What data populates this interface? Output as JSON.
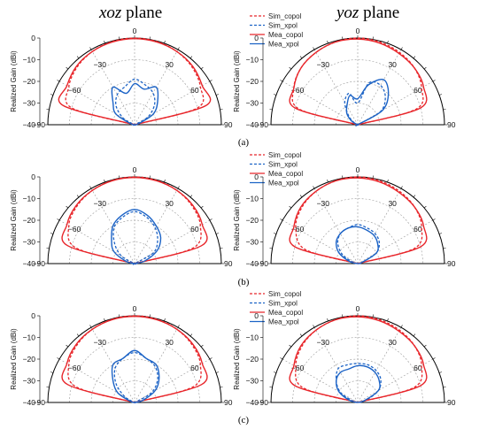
{
  "titles": {
    "xoz": {
      "italic": "xoz",
      "rest": " plane"
    },
    "yoz": {
      "italic": "yoz",
      "rest": " plane"
    }
  },
  "captions": [
    "(a)",
    "(b)",
    "(c)"
  ],
  "colors": {
    "copol": "#e8262b",
    "xpol": "#1c63c6"
  },
  "chart_data": {
    "type": "polar",
    "angle_unit": "deg",
    "angle_range": [
      -90,
      90
    ],
    "angle_ticks": [
      -90,
      -60,
      -30,
      0,
      30,
      60,
      90
    ],
    "angle_tick_labels": [
      "−90",
      "−60",
      "−30",
      "0",
      "30",
      "60",
      "90"
    ],
    "r_range": [
      -40,
      0
    ],
    "r_ticks": [
      0,
      -10,
      -20,
      -30,
      -40
    ],
    "r_tick_labels": [
      "0",
      "−10",
      "−20",
      "−30",
      "−40"
    ],
    "ylabel": "Realized Gain (dBi)",
    "grid": true,
    "legend": [
      {
        "label": "Sim_copol",
        "kind": "copol",
        "dash": true
      },
      {
        "label": "Sim_xpol",
        "kind": "xpol",
        "dash": true
      },
      {
        "label": "Mea_copol",
        "kind": "copol",
        "dash": false
      },
      {
        "label": "Mea_xpol",
        "kind": "xpol",
        "dash": false
      }
    ],
    "angles": [
      -90,
      -75,
      -60,
      -45,
      -30,
      -15,
      0,
      15,
      30,
      45,
      60,
      75,
      90
    ],
    "panels": [
      {
        "id": "a-xoz",
        "row": 0,
        "col": 0,
        "series": [
          {
            "name": "Sim_copol",
            "values": [
              -40,
              -10,
              -5,
              -2.5,
              -1,
              -0.3,
              0,
              -0.3,
              -1,
              -2.5,
              -5,
              -10,
              -40
            ]
          },
          {
            "name": "Sim_xpol",
            "values": [
              -40,
              -40,
              -34,
              -28,
              -24,
              -22,
              -19,
              -21,
              -23,
              -27,
              -33,
              -40,
              -40
            ]
          },
          {
            "name": "Mea_copol",
            "values": [
              -40,
              -6,
              -4,
              -2,
              -1,
              -0.5,
              -0.3,
              -0.5,
              -1,
              -2,
              -4,
              -6,
              -40
            ]
          },
          {
            "name": "Mea_xpol",
            "values": [
              -40,
              -38,
              -30,
              -26,
              -20,
              -25,
              -21,
              -23,
              -20,
              -25,
              -30,
              -38,
              -40
            ]
          }
        ]
      },
      {
        "id": "a-yoz",
        "row": 0,
        "col": 1,
        "series": [
          {
            "name": "Sim_copol",
            "values": [
              -40,
              -12,
              -6,
              -3,
              -1.5,
              -0.5,
              0,
              -0.5,
              -1.5,
              -3,
              -6,
              -12,
              -40
            ]
          },
          {
            "name": "Sim_xpol",
            "values": [
              -40,
              -40,
              -38,
              -34,
              -28,
              -25,
              -30,
              -20,
              -19,
              -22,
              -28,
              -40,
              -40
            ]
          },
          {
            "name": "Mea_copol",
            "values": [
              -40,
              -10,
              -6,
              -3,
              -1.5,
              -0.5,
              -0.5,
              -1,
              -2,
              -3,
              -5,
              -10,
              -40
            ]
          },
          {
            "name": "Mea_xpol",
            "values": [
              -40,
              -40,
              -37,
              -33,
              -30,
              -26,
              -28,
              -21,
              -16,
              -20,
              -27,
              -40,
              -40
            ]
          }
        ]
      },
      {
        "id": "b-xoz",
        "row": 1,
        "col": 0,
        "series": [
          {
            "name": "Sim_copol",
            "values": [
              -40,
              -12,
              -5,
              -2.5,
              -1,
              -0.3,
              0,
              -0.3,
              -1,
              -2.5,
              -5,
              -12,
              -40
            ]
          },
          {
            "name": "Sim_xpol",
            "values": [
              -40,
              -40,
              -33,
              -27,
              -21,
              -18,
              -16,
              -18,
              -21,
              -25,
              -30,
              -40,
              -40
            ]
          },
          {
            "name": "Mea_copol",
            "values": [
              -40,
              -8,
              -4,
              -2,
              -1,
              -0.4,
              -0.3,
              -0.5,
              -1,
              -2,
              -4,
              -8,
              -40
            ]
          },
          {
            "name": "Mea_xpol",
            "values": [
              -40,
              -36,
              -29,
              -25,
              -20,
              -17,
              -15,
              -17,
              -20,
              -23,
              -28,
              -35,
              -40
            ]
          }
        ]
      },
      {
        "id": "b-yoz",
        "row": 1,
        "col": 1,
        "series": [
          {
            "name": "Sim_copol",
            "values": [
              -40,
              -15,
              -7,
              -3.5,
              -1.5,
              -0.5,
              0,
              -0.5,
              -1.5,
              -3,
              -6,
              -13,
              -40
            ]
          },
          {
            "name": "Sim_xpol",
            "values": [
              -40,
              -38,
              -32,
              -27,
              -24,
              -23,
              -22,
              -23,
              -24,
              -26,
              -30,
              -38,
              -40
            ]
          },
          {
            "name": "Mea_copol",
            "values": [
              -40,
              -10,
              -6,
              -3,
              -1.5,
              -0.5,
              -0.5,
              -1,
              -2,
              -3,
              -5,
              -10,
              -40
            ]
          },
          {
            "name": "Mea_xpol",
            "values": [
              -40,
              -36,
              -30,
              -26,
              -24,
              -23,
              -23,
              -24,
              -25,
              -27,
              -30,
              -38,
              -40
            ]
          }
        ]
      },
      {
        "id": "c-xoz",
        "row": 2,
        "col": 0,
        "series": [
          {
            "name": "Sim_copol",
            "values": [
              -40,
              -12,
              -5,
              -2.5,
              -1,
              -0.3,
              0,
              -0.3,
              -1,
              -2.5,
              -5,
              -12,
              -40
            ]
          },
          {
            "name": "Sim_xpol",
            "values": [
              -40,
              -40,
              -35,
              -28,
              -22,
              -19,
              -17,
              -19,
              -21,
              -25,
              -31,
              -40,
              -40
            ]
          },
          {
            "name": "Mea_copol",
            "values": [
              -40,
              -8,
              -4,
              -2,
              -1,
              -0.4,
              -0.3,
              -0.5,
              -1,
              -2,
              -4,
              -8,
              -40
            ]
          },
          {
            "name": "Mea_xpol",
            "values": [
              -40,
              -38,
              -31,
              -26,
              -20,
              -19,
              -16,
              -19,
              -20,
              -24,
              -29,
              -36,
              -40
            ]
          }
        ]
      },
      {
        "id": "c-yoz",
        "row": 2,
        "col": 1,
        "series": [
          {
            "name": "Sim_copol",
            "values": [
              -40,
              -14,
              -7,
              -3.5,
              -1.5,
              -0.5,
              0,
              -0.5,
              -1.5,
              -3,
              -6,
              -13,
              -40
            ]
          },
          {
            "name": "Sim_xpol",
            "values": [
              -40,
              -38,
              -31,
              -26,
              -22,
              -22,
              -22,
              -22,
              -23,
              -25,
              -29,
              -36,
              -40
            ]
          },
          {
            "name": "Mea_copol",
            "values": [
              -40,
              -10,
              -6,
              -3,
              -1.5,
              -0.5,
              -0.5,
              -1,
              -2,
              -3,
              -5,
              -10,
              -40
            ]
          },
          {
            "name": "Mea_xpol",
            "values": [
              -40,
              -36,
              -30,
              -26,
              -24,
              -24,
              -23,
              -23,
              -24,
              -26,
              -29,
              -37,
              -40
            ]
          }
        ]
      }
    ]
  }
}
